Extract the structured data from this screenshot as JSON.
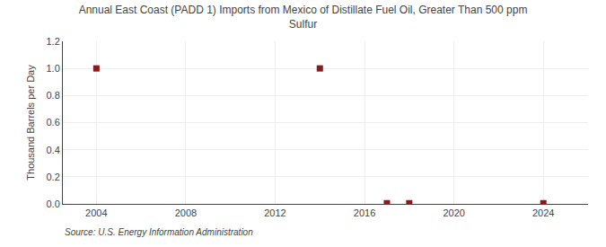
{
  "chart_data": {
    "type": "scatter",
    "title": "Annual East Coast (PADD 1) Imports from Mexico of Distillate Fuel Oil, Greater Than 500 ppm\nSulfur",
    "ylabel": "Thousand Barrels per Day",
    "source": "Source: U.S. Energy Information Administration",
    "x": [
      2004,
      2014,
      2017,
      2018,
      2024
    ],
    "values": [
      1.0,
      1.0,
      0.005,
      0.005,
      0.005
    ],
    "color": "#8b1a1a",
    "marker": "square",
    "xlim": [
      2002.5,
      2026
    ],
    "ylim": [
      0,
      1.2
    ],
    "xticks": [
      2004,
      2008,
      2012,
      2016,
      2020,
      2024
    ],
    "yticks": [
      {
        "value": 0.0,
        "label": "0.0"
      },
      0.2,
      0.4,
      0.6,
      0.8,
      {
        "value": 1.0,
        "label": "1.0"
      },
      1.2
    ],
    "grid": true
  }
}
